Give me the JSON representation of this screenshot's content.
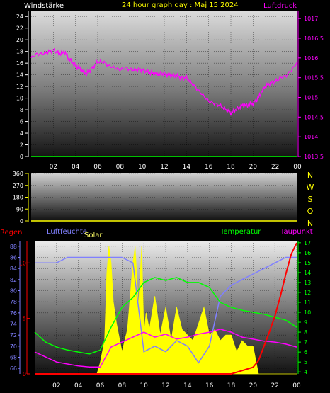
{
  "header": {
    "left": "Windstärke",
    "title": "24 hour graph day : Maj 15 2024",
    "right": "Luftdruck"
  },
  "colors": {
    "wind": "#ffffff",
    "pressure": "#ff00ff",
    "title": "#ffff00",
    "rain": "#ff0000",
    "humidity": "#8080ff",
    "solar": "#ffff00",
    "temperature": "#00ff00",
    "dewpoint": "#ff00ff",
    "winddir": "#ffff00"
  },
  "chart_data": [
    {
      "type": "line",
      "name": "wind-pressure",
      "x_ticks": [
        "02",
        "04",
        "06",
        "08",
        "10",
        "12",
        "14",
        "16",
        "18",
        "20",
        "22",
        "00"
      ],
      "y_left_ticks": [
        "0",
        "2",
        "4",
        "6",
        "8",
        "10",
        "12",
        "14",
        "16",
        "18",
        "20",
        "22",
        "24"
      ],
      "y_right_ticks": [
        "1013,5",
        "1014",
        "1014,5",
        "1015",
        "1015,5",
        "1016",
        "1016,5",
        "1017"
      ],
      "ylim_left": [
        0,
        25
      ],
      "ylim_right": [
        1013.5,
        1017.2
      ],
      "series": [
        {
          "name": "Luftdruck",
          "axis": "right",
          "x": [
            0,
            0.5,
            1,
            1.5,
            2,
            2.5,
            3,
            3.5,
            4,
            4.5,
            5,
            5.5,
            6,
            6.5,
            7,
            7.5,
            8,
            8.5,
            9,
            9.5,
            10,
            10.5,
            11,
            11.5,
            12,
            12.5,
            13,
            13.5,
            14,
            14.5,
            15,
            15.5,
            16,
            16.5,
            17,
            17.5,
            18,
            18.5,
            19,
            19.5,
            20,
            20.5,
            21,
            21.5,
            22,
            22.5,
            23,
            23.5,
            24
          ],
          "values": [
            1016.0,
            1016.1,
            1016.1,
            1016.15,
            1016.2,
            1016.1,
            1016.15,
            1015.95,
            1015.8,
            1015.7,
            1015.6,
            1015.75,
            1015.9,
            1015.9,
            1015.8,
            1015.75,
            1015.7,
            1015.75,
            1015.7,
            1015.7,
            1015.7,
            1015.65,
            1015.6,
            1015.6,
            1015.6,
            1015.55,
            1015.55,
            1015.5,
            1015.5,
            1015.35,
            1015.2,
            1015.05,
            1014.9,
            1014.85,
            1014.8,
            1014.7,
            1014.6,
            1014.7,
            1014.8,
            1014.8,
            1014.85,
            1015.0,
            1015.25,
            1015.35,
            1015.4,
            1015.5,
            1015.55,
            1015.7,
            1015.9
          ]
        },
        {
          "name": "Windstärke",
          "axis": "left",
          "x": [
            0,
            24
          ],
          "values": [
            0,
            0
          ]
        }
      ]
    },
    {
      "type": "line",
      "name": "wind-direction",
      "y_left_ticks": [
        "0",
        "90",
        "180",
        "270",
        "360"
      ],
      "y_right_ticks": [
        "N",
        "W",
        "S",
        "O",
        "N"
      ],
      "ylim": [
        0,
        360
      ],
      "series": [
        {
          "name": "Winddirection",
          "x": [
            0,
            24
          ],
          "values": [
            0,
            0
          ]
        }
      ]
    },
    {
      "type": "line",
      "name": "weather",
      "labels": {
        "rain": "Regen",
        "humidity": "Luftfeuchte",
        "solar": "Solar",
        "temperature": "Temperatur",
        "dewpoint": "Taupunkt"
      },
      "x_ticks": [
        "02",
        "04",
        "06",
        "08",
        "10",
        "12",
        "14",
        "16",
        "18",
        "20",
        "22",
        "00"
      ],
      "rain_ticks": [
        "0",
        "5",
        "10"
      ],
      "humidity_ticks": [
        "66",
        "68",
        "70",
        "72",
        "74",
        "76",
        "78",
        "80",
        "82",
        "84",
        "86",
        "88"
      ],
      "temp_ticks": [
        "4",
        "5",
        "6",
        "7",
        "8",
        "9",
        "10",
        "11",
        "12",
        "13",
        "14",
        "15",
        "16",
        "17"
      ],
      "ylim_rain": [
        0,
        12
      ],
      "ylim_humidity": [
        65,
        89
      ],
      "ylim_temp": [
        3.8,
        17.2
      ],
      "series": [
        {
          "name": "Luftfeuchte",
          "axis": "humidity",
          "x": [
            0,
            1,
            2,
            3,
            4,
            5,
            6,
            7,
            8,
            9,
            10,
            11,
            12,
            13,
            14,
            15,
            16,
            17,
            18,
            19,
            20,
            21,
            22,
            23,
            24
          ],
          "values": [
            85,
            85,
            85,
            86,
            86,
            86,
            86,
            86,
            86,
            85,
            69,
            70,
            69,
            71,
            70,
            67,
            70,
            79,
            81,
            82,
            83,
            84,
            85,
            86,
            86
          ]
        },
        {
          "name": "Temperatur",
          "axis": "temp",
          "x": [
            0,
            1,
            2,
            3,
            4,
            5,
            6,
            7,
            8,
            9,
            10,
            11,
            12,
            13,
            14,
            15,
            16,
            17,
            18,
            19,
            20,
            21,
            22,
            23,
            24
          ],
          "values": [
            8.0,
            7.0,
            6.5,
            6.2,
            6.0,
            5.8,
            6.2,
            8.5,
            10.5,
            11.5,
            13.0,
            13.5,
            13.2,
            13.5,
            13.0,
            13.0,
            12.5,
            11.0,
            10.5,
            10.2,
            10.0,
            9.8,
            9.5,
            9.2,
            8.5
          ]
        },
        {
          "name": "Taupunkt",
          "axis": "temp",
          "x": [
            0,
            1,
            2,
            3,
            4,
            5,
            6,
            7,
            8,
            9,
            10,
            11,
            12,
            13,
            14,
            15,
            16,
            17,
            18,
            19,
            20,
            21,
            22,
            23,
            24
          ],
          "values": [
            6.0,
            5.5,
            5.0,
            4.8,
            4.6,
            4.5,
            4.5,
            6.5,
            7.0,
            7.5,
            8.0,
            7.5,
            7.8,
            7.3,
            7.5,
            7.8,
            8.0,
            8.3,
            8.0,
            7.5,
            7.3,
            7.1,
            7.0,
            6.8,
            6.5
          ]
        },
        {
          "name": "Regen",
          "axis": "rain",
          "x": [
            0,
            18,
            19,
            20,
            20.5,
            21,
            21.5,
            22,
            22.5,
            23,
            23.5,
            24
          ],
          "values": [
            0,
            0,
            0.3,
            0.6,
            1.2,
            2.5,
            3.8,
            5.2,
            7.0,
            9.0,
            10.8,
            11.8
          ]
        },
        {
          "name": "Solar",
          "axis": "humidity",
          "x": [
            0,
            5.7,
            6.0,
            6.4,
            6.6,
            6.8,
            7.0,
            7.2,
            7.5,
            8.0,
            8.5,
            9.0,
            9.2,
            9.5,
            9.8,
            10.0,
            10.2,
            10.5,
            11.0,
            11.5,
            12.0,
            12.5,
            13.0,
            13.5,
            14.0,
            14.5,
            15.0,
            15.5,
            16.0,
            16.5,
            17.0,
            17.5,
            18.0,
            18.5,
            19.0,
            19.5,
            20.0,
            20.5,
            24
          ],
          "values": [
            65,
            65,
            67,
            71,
            83,
            88,
            85,
            78,
            74,
            69,
            73,
            85,
            88,
            77,
            88,
            72,
            76,
            73,
            79,
            72,
            77,
            71,
            77,
            73,
            72,
            71,
            74,
            77,
            72,
            73,
            71,
            72,
            72,
            69,
            71,
            70,
            70,
            65,
            65
          ]
        }
      ]
    }
  ]
}
